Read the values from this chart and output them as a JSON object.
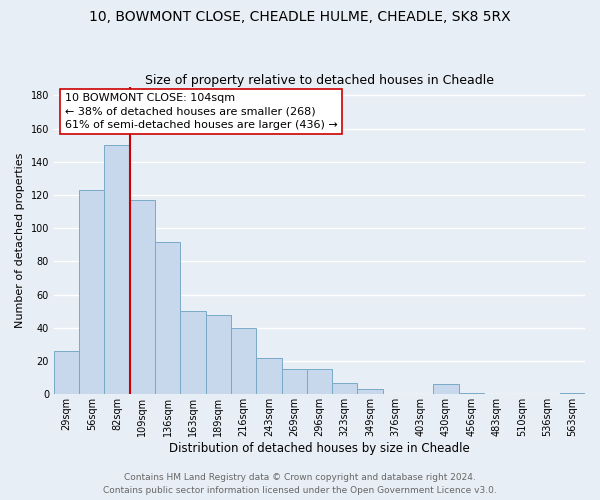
{
  "title": "10, BOWMONT CLOSE, CHEADLE HULME, CHEADLE, SK8 5RX",
  "subtitle": "Size of property relative to detached houses in Cheadle",
  "xlabel": "Distribution of detached houses by size in Cheadle",
  "ylabel": "Number of detached properties",
  "bar_color": "#c8d8ec",
  "bar_edge_color": "#7aaac8",
  "bin_labels": [
    "29sqm",
    "56sqm",
    "82sqm",
    "109sqm",
    "136sqm",
    "163sqm",
    "189sqm",
    "216sqm",
    "243sqm",
    "269sqm",
    "296sqm",
    "323sqm",
    "349sqm",
    "376sqm",
    "403sqm",
    "430sqm",
    "456sqm",
    "483sqm",
    "510sqm",
    "536sqm",
    "563sqm"
  ],
  "bar_heights": [
    26,
    123,
    150,
    117,
    92,
    50,
    48,
    40,
    22,
    15,
    15,
    7,
    3,
    0,
    0,
    6,
    1,
    0,
    0,
    0,
    1
  ],
  "ylim": [
    0,
    185
  ],
  "yticks": [
    0,
    20,
    40,
    60,
    80,
    100,
    120,
    140,
    160,
    180
  ],
  "vline_index": 3,
  "vline_color": "#cc0000",
  "annotation_line1": "10 BOWMONT CLOSE: 104sqm",
  "annotation_line2": "← 38% of detached houses are smaller (268)",
  "annotation_line3": "61% of semi-detached houses are larger (436) →",
  "annotation_box_color": "#ffffff",
  "annotation_box_edge": "#cc0000",
  "footer_line1": "Contains HM Land Registry data © Crown copyright and database right 2024.",
  "footer_line2": "Contains public sector information licensed under the Open Government Licence v3.0.",
  "bg_color": "#e8eef5",
  "grid_color": "#d0d8e4",
  "title_fontsize": 10,
  "subtitle_fontsize": 9,
  "xlabel_fontsize": 8.5,
  "ylabel_fontsize": 8,
  "tick_fontsize": 7,
  "footer_fontsize": 6.5,
  "annotation_fontsize": 8
}
